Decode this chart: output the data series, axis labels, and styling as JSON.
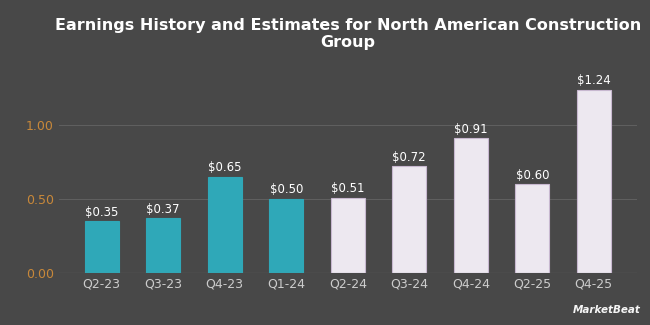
{
  "categories": [
    "Q2-23",
    "Q3-23",
    "Q4-23",
    "Q1-24",
    "Q2-24",
    "Q3-24",
    "Q4-24",
    "Q2-25",
    "Q4-25"
  ],
  "values": [
    0.35,
    0.37,
    0.65,
    0.5,
    0.51,
    0.72,
    0.91,
    0.6,
    1.24
  ],
  "bar_colors": [
    "#2fa8b8",
    "#2fa8b8",
    "#2fa8b8",
    "#2fa8b8",
    "#ede8f0",
    "#ede8f0",
    "#ede8f0",
    "#ede8f0",
    "#ede8f0"
  ],
  "bar_edge_colors": [
    "#2fa8b8",
    "#2fa8b8",
    "#2fa8b8",
    "#2fa8b8",
    "#c8b8d0",
    "#c8b8d0",
    "#c8b8d0",
    "#c8b8d0",
    "#c8b8d0"
  ],
  "title_line1": "Earnings History and Estimates for North American Construction",
  "title_line2": "Group",
  "title_color": "#ffffff",
  "title_fontsize": 11.5,
  "label_color": "#ffffff",
  "label_fontsize": 8.5,
  "ytick_color": "#c8883a",
  "xtick_color": "#cccccc",
  "tick_fontsize": 9,
  "background_color": "#484848",
  "plot_bg_color": "#484848",
  "grid_color": "#606060",
  "ylim": [
    0,
    1.45
  ],
  "yticks": [
    0.0,
    0.5,
    1.0
  ],
  "ytick_labels": [
    "0.00",
    "0.50",
    "1.00"
  ],
  "value_labels": [
    "$0.35",
    "$0.37",
    "$0.65",
    "$0.50",
    "$0.51",
    "$0.72",
    "$0.91",
    "$0.60",
    "$1.24"
  ],
  "bar_width": 0.55
}
